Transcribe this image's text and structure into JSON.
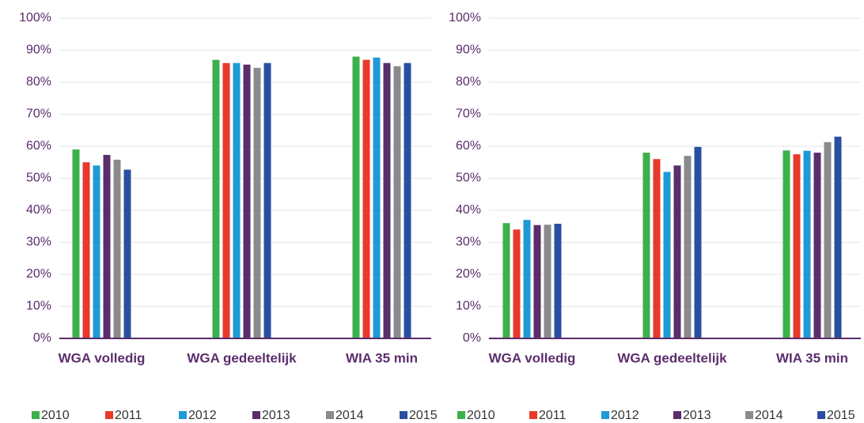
{
  "chart_data": [
    {
      "type": "bar",
      "categories": [
        "WGA volledig",
        "WGA gedeeltelijk",
        "WIA 35 min"
      ],
      "series": [
        {
          "name": "2010",
          "color": "#3cb04a",
          "values": [
            59,
            87,
            88
          ]
        },
        {
          "name": "2011",
          "color": "#e8392b",
          "values": [
            55,
            86,
            87
          ]
        },
        {
          "name": "2012",
          "color": "#1e9ad6",
          "values": [
            54,
            86,
            87.7
          ]
        },
        {
          "name": "2013",
          "color": "#5a2d6b",
          "values": [
            57.3,
            85.5,
            86
          ]
        },
        {
          "name": "2014",
          "color": "#8a8a8c",
          "values": [
            55.8,
            84.5,
            85
          ]
        },
        {
          "name": "2015",
          "color": "#2a4fa0",
          "values": [
            52.7,
            86,
            86
          ]
        }
      ],
      "ylim": [
        0,
        100
      ],
      "yticks": [
        {
          "value": 0,
          "label": "0%"
        },
        {
          "value": 10,
          "label": "10%"
        },
        {
          "value": 20,
          "label": "20%"
        },
        {
          "value": 30,
          "label": "30%"
        },
        {
          "value": 40,
          "label": "40%"
        },
        {
          "value": 50,
          "label": "50%"
        },
        {
          "value": 60,
          "label": "60%"
        },
        {
          "value": 70,
          "label": "70%"
        },
        {
          "value": 80,
          "label": "80%"
        },
        {
          "value": 90,
          "label": "90%"
        },
        {
          "value": 100,
          "label": "100%"
        }
      ],
      "grid": true,
      "legend": "bottom"
    },
    {
      "type": "bar",
      "categories": [
        "WGA volledig",
        "WGA gedeeltelijk",
        "WIA 35 min"
      ],
      "series": [
        {
          "name": "2010",
          "color": "#3cb04a",
          "values": [
            36,
            58,
            58.7
          ]
        },
        {
          "name": "2011",
          "color": "#e8392b",
          "values": [
            34,
            56,
            57.5
          ]
        },
        {
          "name": "2012",
          "color": "#1e9ad6",
          "values": [
            37,
            52,
            58.6
          ]
        },
        {
          "name": "2013",
          "color": "#5a2d6b",
          "values": [
            35.4,
            54,
            58
          ]
        },
        {
          "name": "2014",
          "color": "#8a8a8c",
          "values": [
            35.5,
            57,
            61.3
          ]
        },
        {
          "name": "2015",
          "color": "#2a4fa0",
          "values": [
            35.8,
            59.8,
            63
          ]
        }
      ],
      "ylim": [
        0,
        100
      ],
      "yticks": [
        {
          "value": 0,
          "label": "0%"
        },
        {
          "value": 10,
          "label": "10%"
        },
        {
          "value": 20,
          "label": "20%"
        },
        {
          "value": 30,
          "label": "30%"
        },
        {
          "value": 40,
          "label": "40%"
        },
        {
          "value": 50,
          "label": "50%"
        },
        {
          "value": 60,
          "label": "60%"
        },
        {
          "value": 70,
          "label": "70%"
        },
        {
          "value": 80,
          "label": "80%"
        },
        {
          "value": 90,
          "label": "90%"
        },
        {
          "value": 100,
          "label": "100%"
        }
      ],
      "grid": true,
      "legend": "bottom"
    }
  ]
}
